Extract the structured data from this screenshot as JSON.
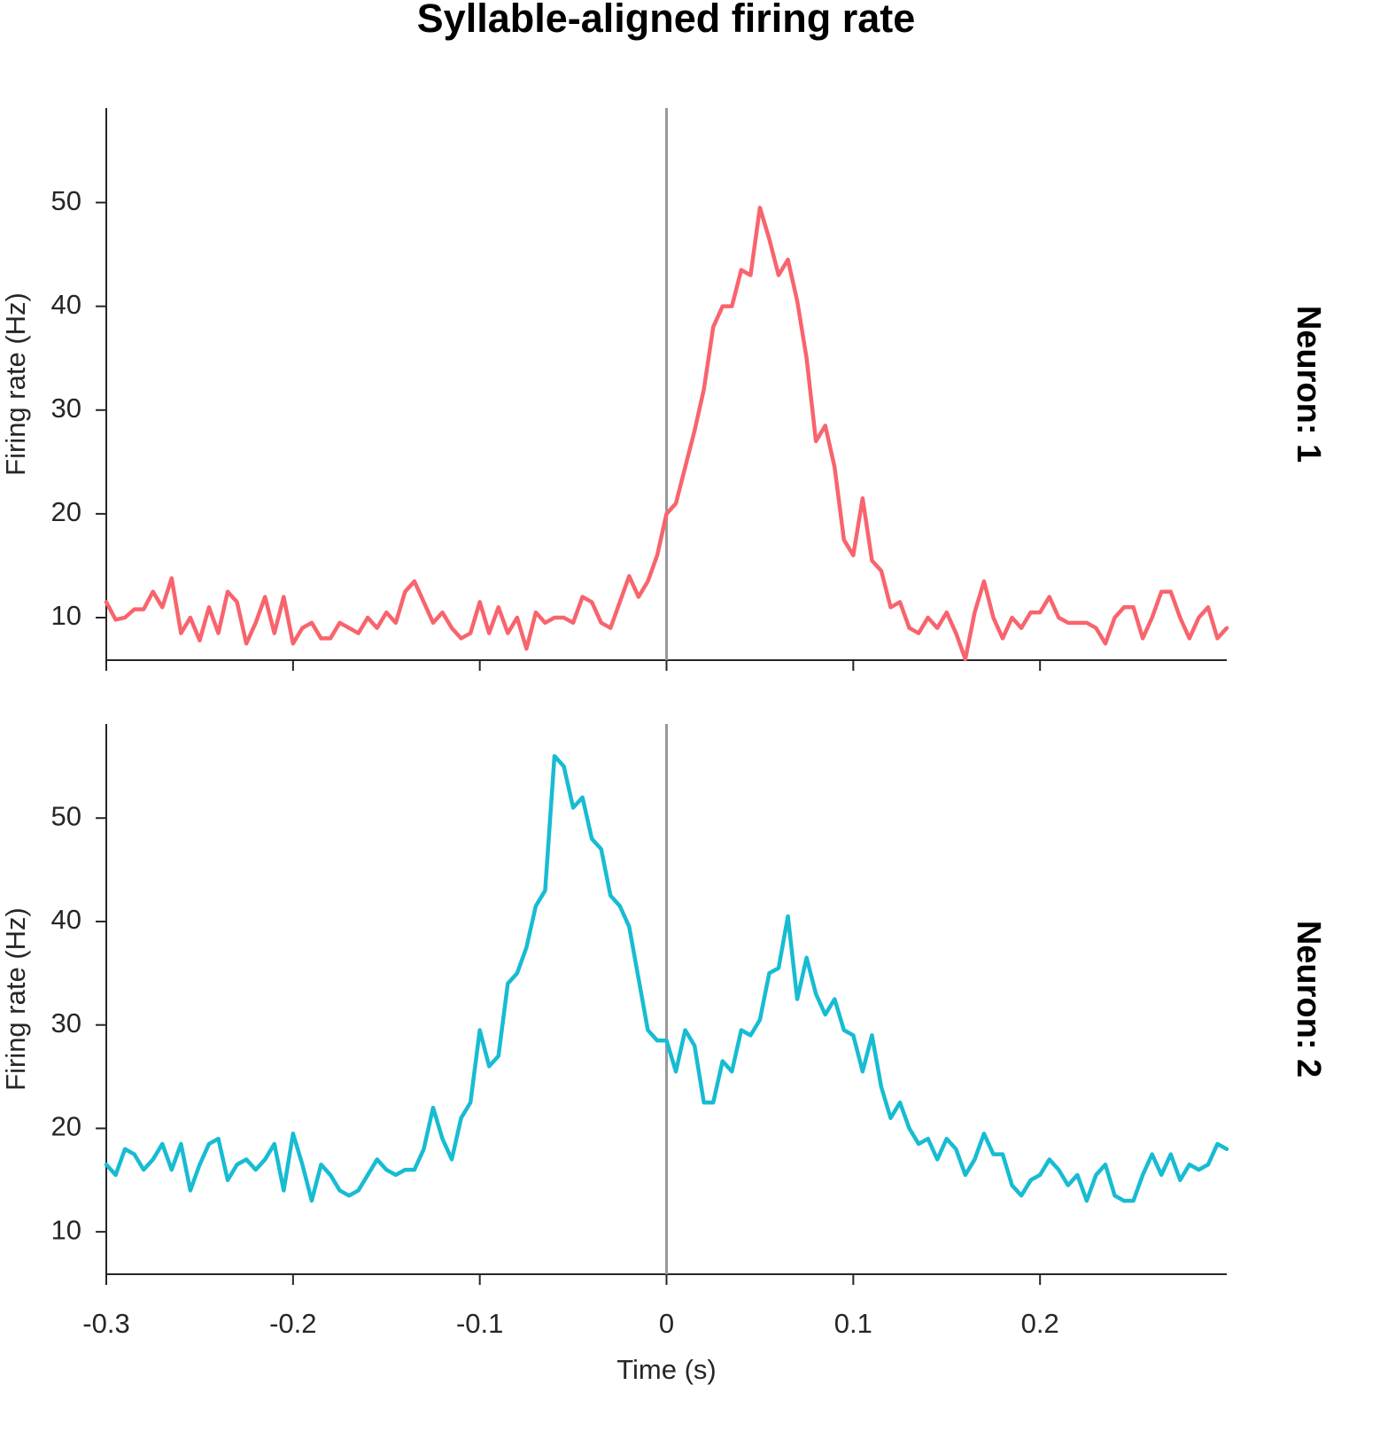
{
  "chart_data": [
    {
      "type": "line",
      "title": "Syllable-aligned firing rate",
      "facet_label": "Neuron: 1",
      "ylabel": "Firing rate (Hz)",
      "x": [
        -0.3,
        -0.295,
        -0.29,
        -0.285,
        -0.28,
        -0.275,
        -0.27,
        -0.265,
        -0.26,
        -0.255,
        -0.25,
        -0.245,
        -0.24,
        -0.235,
        -0.23,
        -0.225,
        -0.22,
        -0.215,
        -0.21,
        -0.205,
        -0.2,
        -0.195,
        -0.19,
        -0.185,
        -0.18,
        -0.175,
        -0.17,
        -0.165,
        -0.16,
        -0.155,
        -0.15,
        -0.145,
        -0.14,
        -0.135,
        -0.13,
        -0.125,
        -0.12,
        -0.115,
        -0.11,
        -0.105,
        -0.1,
        -0.095,
        -0.09,
        -0.085,
        -0.08,
        -0.075,
        -0.07,
        -0.065,
        -0.06,
        -0.055,
        -0.05,
        -0.045,
        -0.04,
        -0.035,
        -0.03,
        -0.025,
        -0.02,
        -0.015,
        -0.01,
        -0.005,
        0,
        0.005,
        0.01,
        0.015,
        0.02,
        0.025,
        0.03,
        0.035,
        0.04,
        0.045,
        0.05,
        0.055,
        0.06,
        0.065,
        0.07,
        0.075,
        0.08,
        0.085,
        0.09,
        0.095,
        0.1,
        0.105,
        0.11,
        0.115,
        0.12,
        0.125,
        0.13,
        0.135,
        0.14,
        0.145,
        0.15,
        0.155,
        0.16,
        0.165,
        0.17,
        0.175,
        0.18,
        0.185,
        0.19,
        0.195,
        0.2,
        0.205,
        0.21,
        0.215,
        0.22,
        0.225,
        0.23,
        0.235,
        0.24,
        0.245,
        0.25,
        0.255,
        0.26,
        0.265,
        0.27,
        0.275,
        0.28,
        0.285,
        0.29,
        0.295,
        0.3
      ],
      "series": [
        {
          "color": "#f8646d",
          "values": [
            11.5,
            9.8,
            10,
            10.8,
            10.8,
            12.5,
            11,
            13.8,
            8.5,
            10,
            7.8,
            11,
            8.5,
            12.5,
            11.5,
            7.5,
            9.5,
            12,
            8.5,
            12,
            7.5,
            9,
            9.5,
            8,
            8,
            9.5,
            9,
            8.5,
            10,
            9,
            10.5,
            9.5,
            12.5,
            13.5,
            11.5,
            9.5,
            10.5,
            9,
            8,
            8.5,
            11.5,
            8.5,
            11,
            8.5,
            10,
            7,
            10.5,
            9.5,
            10,
            10,
            9.5,
            12,
            11.5,
            9.5,
            9,
            11.5,
            14,
            12,
            13.5,
            16,
            20,
            21,
            24.5,
            28,
            32,
            38,
            40,
            40,
            43.5,
            43,
            49.5,
            46.5,
            43,
            44.5,
            40.5,
            35,
            27,
            28.5,
            24.5,
            17.5,
            16,
            21.5,
            15.5,
            14.5,
            11,
            11.5,
            9,
            8.5,
            10,
            9,
            10.5,
            8.5,
            6,
            10.5,
            13.5,
            10,
            8,
            10,
            9,
            10.5,
            10.5,
            12,
            10,
            9.5,
            9.5,
            9.5,
            9,
            7.5,
            10,
            11,
            11,
            8,
            10,
            12.5,
            12.5,
            10,
            8,
            10,
            11,
            8,
            9
          ]
        }
      ],
      "xlim": [
        -0.3,
        0.3
      ],
      "xticks": [
        -0.3,
        -0.2,
        -0.1,
        0,
        0.1,
        0.2
      ],
      "ylim": [
        5.9,
        59.1
      ],
      "yticks": [
        10,
        20,
        30,
        40,
        50
      ],
      "vline": 0,
      "vline_color": "#999999"
    },
    {
      "type": "line",
      "facet_label": "Neuron: 2",
      "ylabel": "Firing rate (Hz)",
      "xlabel": "Time (s)",
      "x": [
        -0.3,
        -0.295,
        -0.29,
        -0.285,
        -0.28,
        -0.275,
        -0.27,
        -0.265,
        -0.26,
        -0.255,
        -0.25,
        -0.245,
        -0.24,
        -0.235,
        -0.23,
        -0.225,
        -0.22,
        -0.215,
        -0.21,
        -0.205,
        -0.2,
        -0.195,
        -0.19,
        -0.185,
        -0.18,
        -0.175,
        -0.17,
        -0.165,
        -0.16,
        -0.155,
        -0.15,
        -0.145,
        -0.14,
        -0.135,
        -0.13,
        -0.125,
        -0.12,
        -0.115,
        -0.11,
        -0.105,
        -0.1,
        -0.095,
        -0.09,
        -0.085,
        -0.08,
        -0.075,
        -0.07,
        -0.065,
        -0.06,
        -0.055,
        -0.05,
        -0.045,
        -0.04,
        -0.035,
        -0.03,
        -0.025,
        -0.02,
        -0.015,
        -0.01,
        -0.005,
        0,
        0.005,
        0.01,
        0.015,
        0.02,
        0.025,
        0.03,
        0.035,
        0.04,
        0.045,
        0.05,
        0.055,
        0.06,
        0.065,
        0.07,
        0.075,
        0.08,
        0.085,
        0.09,
        0.095,
        0.1,
        0.105,
        0.11,
        0.115,
        0.12,
        0.125,
        0.13,
        0.135,
        0.14,
        0.145,
        0.15,
        0.155,
        0.16,
        0.165,
        0.17,
        0.175,
        0.18,
        0.185,
        0.19,
        0.195,
        0.2,
        0.205,
        0.21,
        0.215,
        0.22,
        0.225,
        0.23,
        0.235,
        0.24,
        0.245,
        0.25,
        0.255,
        0.26,
        0.265,
        0.27,
        0.275,
        0.28,
        0.285,
        0.29,
        0.295,
        0.3
      ],
      "series": [
        {
          "color": "#17bcd2",
          "values": [
            16.5,
            15.5,
            18,
            17.5,
            16,
            17,
            18.5,
            16,
            18.5,
            14,
            16.5,
            18.5,
            19,
            15,
            16.5,
            17,
            16,
            17,
            18.5,
            14,
            19.5,
            16.5,
            13,
            16.5,
            15.5,
            14,
            13.5,
            14,
            15.5,
            17,
            16,
            15.5,
            16,
            16,
            18,
            22,
            19,
            17,
            21,
            22.5,
            29.5,
            26,
            27,
            34,
            35,
            37.5,
            41.5,
            43,
            56,
            55,
            51,
            52,
            48,
            47,
            42.5,
            41.5,
            39.5,
            34.5,
            29.5,
            28.5,
            28.5,
            25.5,
            29.5,
            28,
            22.5,
            22.5,
            26.5,
            25.5,
            29.5,
            29,
            30.5,
            35,
            35.5,
            40.5,
            32.5,
            36.5,
            33,
            31,
            32.5,
            29.5,
            29,
            25.5,
            29,
            24,
            21,
            22.5,
            20,
            18.5,
            19,
            17,
            19,
            18,
            15.5,
            17,
            19.5,
            17.5,
            17.5,
            14.5,
            13.5,
            15,
            15.5,
            17,
            16,
            14.5,
            15.5,
            13,
            15.5,
            16.5,
            13.5,
            13,
            13,
            15.5,
            17.5,
            15.5,
            17.5,
            15,
            16.5,
            16,
            16.5,
            18.5,
            18
          ]
        }
      ],
      "xlim": [
        -0.3,
        0.3
      ],
      "xticks": [
        -0.3,
        -0.2,
        -0.1,
        0,
        0.1,
        0.2
      ],
      "ylim": [
        5.9,
        59.1
      ],
      "yticks": [
        10,
        20,
        30,
        40,
        50
      ],
      "vline": 0,
      "vline_color": "#999999"
    }
  ]
}
